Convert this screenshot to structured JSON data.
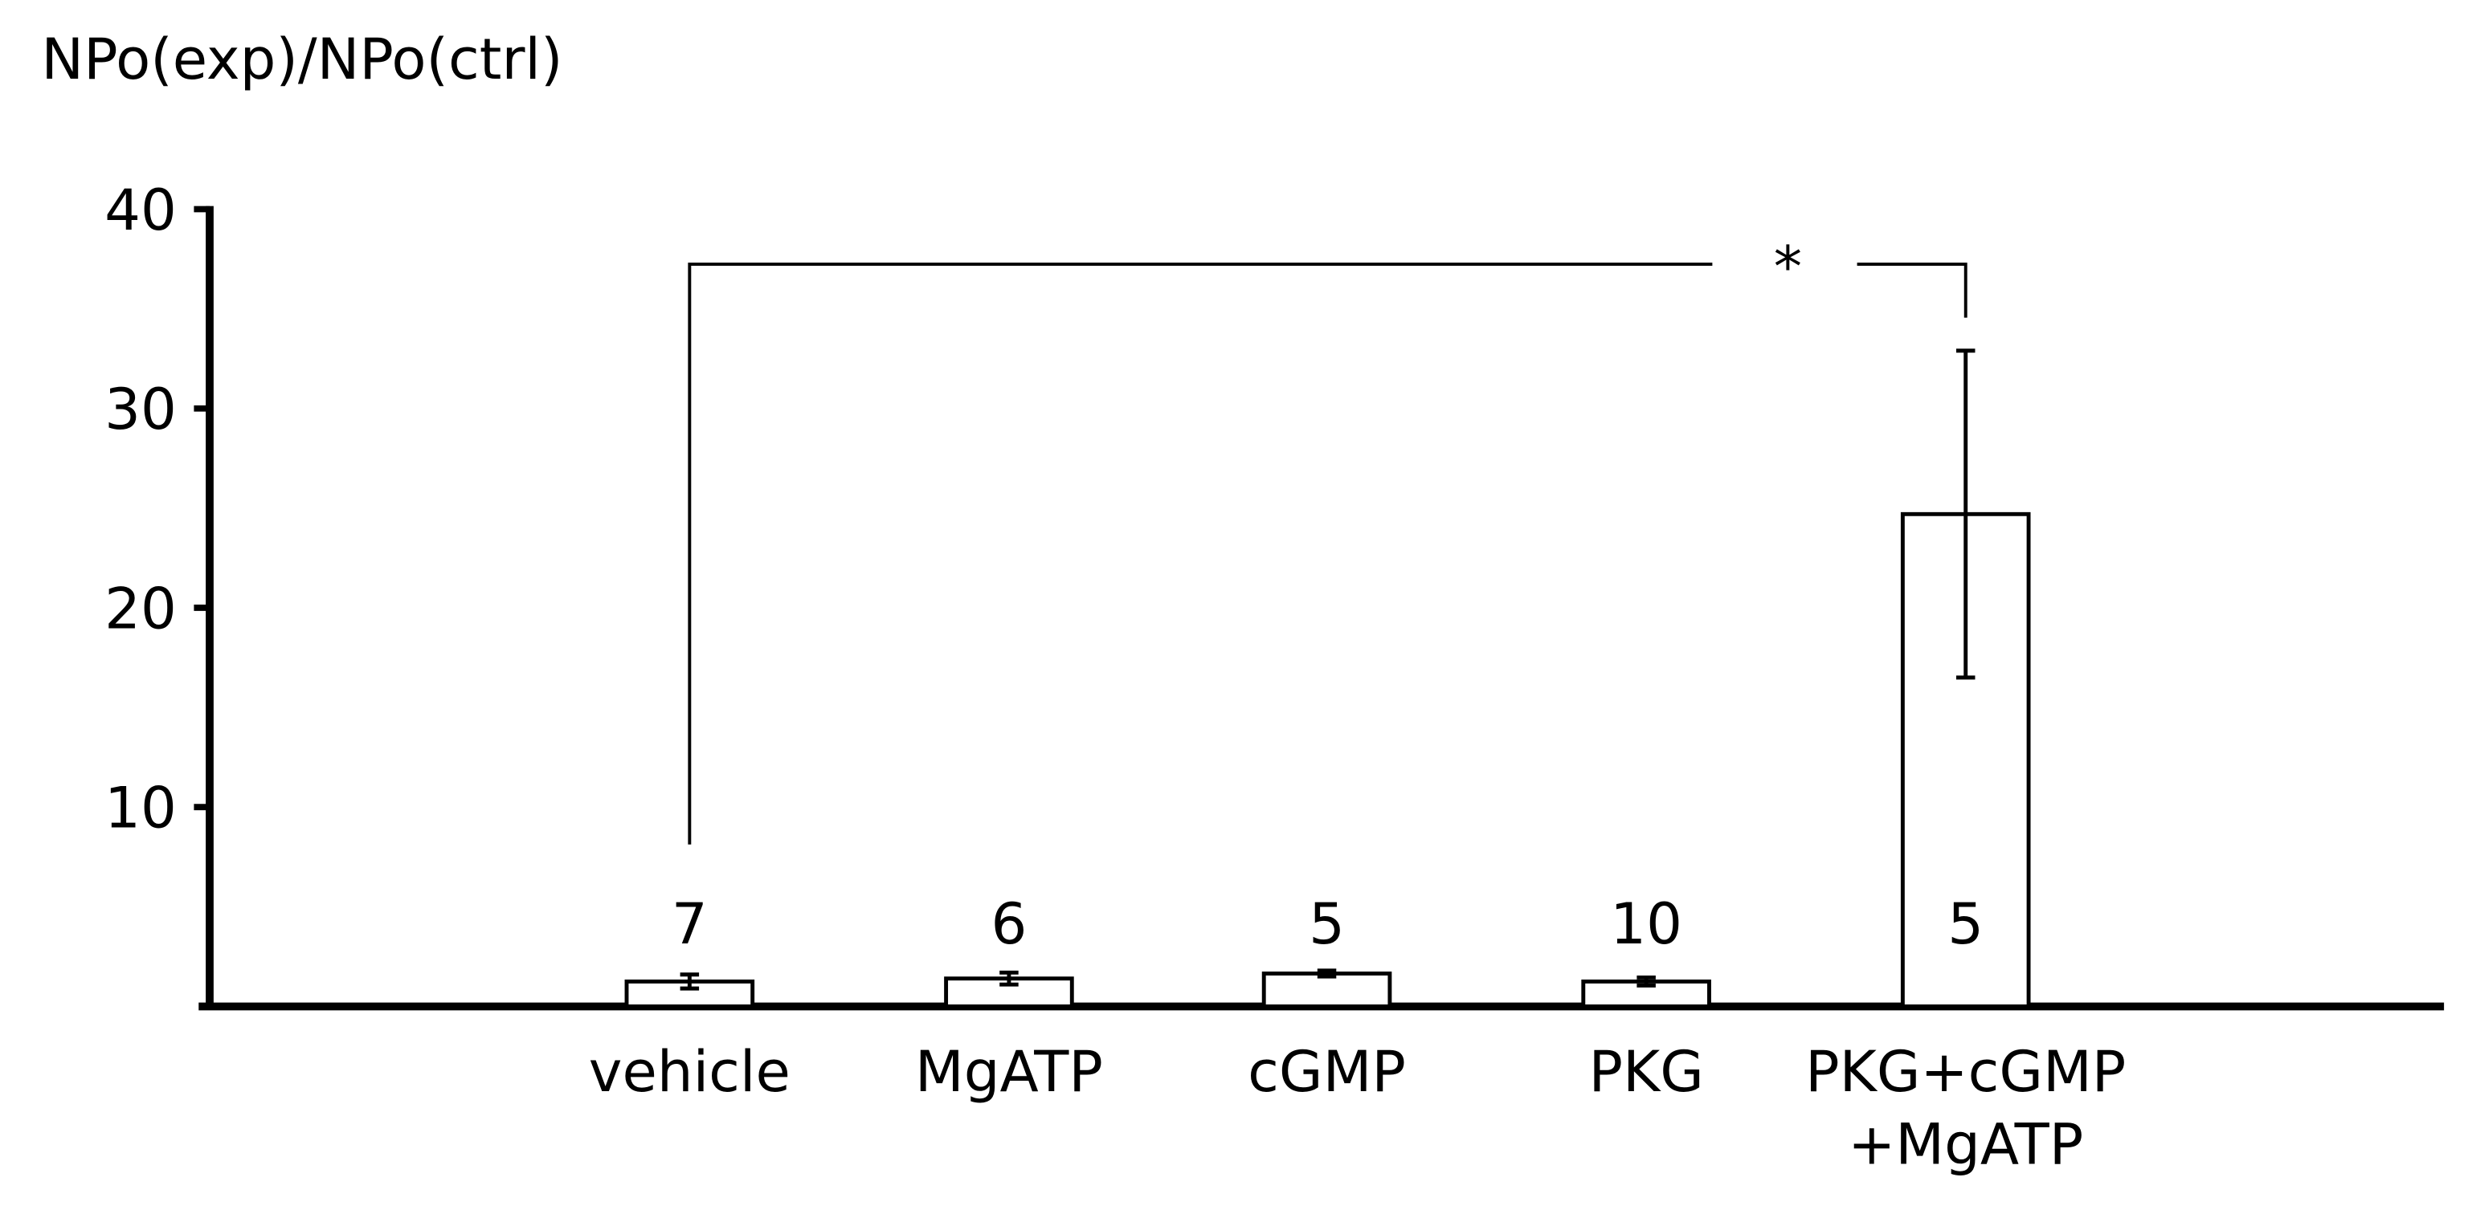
{
  "chart_data": {
    "type": "bar",
    "y_axis_label": "NPo(exp)/NPo(ctrl)",
    "categories": [
      "vehicle",
      "MgATP",
      "cGMP",
      "PKG",
      "PKG+cGMP\n+MgATP"
    ],
    "values": [
      1.25,
      1.4,
      1.65,
      1.25,
      24.7
    ],
    "errors": [
      0.35,
      0.3,
      0.15,
      0.2,
      8.2
    ],
    "n_labels": [
      7,
      6,
      5,
      10,
      5
    ],
    "color": "#ffffff",
    "ylim": [
      0,
      40
    ],
    "yticks": [
      10,
      20,
      30,
      40
    ],
    "significance": "*"
  }
}
